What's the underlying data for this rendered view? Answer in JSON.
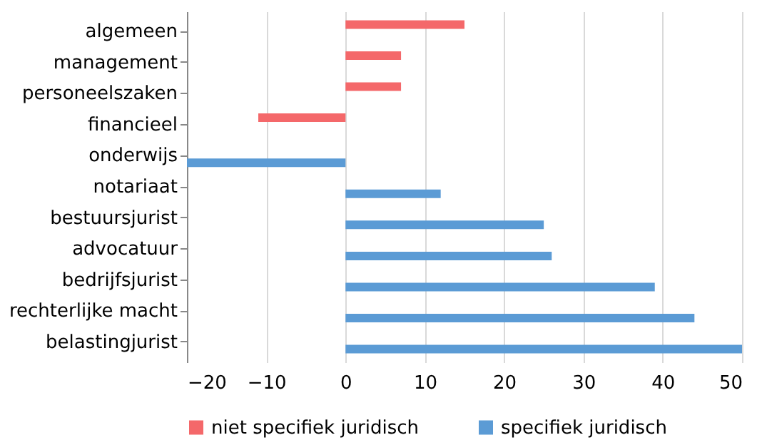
{
  "chart_data": {
    "type": "bar",
    "orientation": "horizontal",
    "categories": [
      "algemeen",
      "management",
      "personeelszaken",
      "financieel",
      "onderwijs",
      "notariaat",
      "bestuursjurist",
      "advocatuur",
      "bedrijfsjurist",
      "rechterlijke macht",
      "belastingjurist"
    ],
    "series": [
      {
        "name": "niet specifiek juridisch",
        "color": "#f4686a",
        "values": [
          15,
          7,
          7,
          -11,
          null,
          null,
          null,
          null,
          null,
          null,
          null
        ]
      },
      {
        "name": "specifiek juridisch",
        "color": "#5b9bd5",
        "values": [
          null,
          null,
          null,
          null,
          -20,
          12,
          25,
          26,
          39,
          44,
          50
        ]
      }
    ],
    "xlim": [
      -20,
      50
    ],
    "xticks": [
      -20,
      -10,
      0,
      10,
      20,
      30,
      40,
      50
    ],
    "grid": "x",
    "legend": "bottom"
  }
}
